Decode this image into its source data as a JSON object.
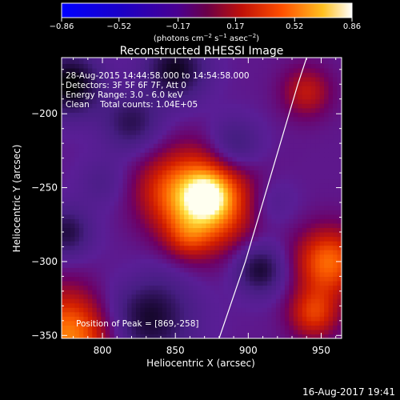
{
  "chart_data": {
    "type": "heatmap",
    "title": "Reconstructed RHESSI Image",
    "xlabel": "Heliocentric X (arcsec)",
    "ylabel": "Heliocentric Y (arcsec)",
    "xlim": [
      772,
      964
    ],
    "ylim": [
      -352,
      -162
    ],
    "x_ticks": [
      800,
      850,
      900,
      950
    ],
    "y_ticks": [
      -200,
      -250,
      -300,
      -350
    ],
    "colorbar": {
      "range": [
        -0.86,
        0.86
      ],
      "tick_values": [
        -0.86,
        -0.52,
        -0.17,
        0.17,
        0.52,
        0.86
      ],
      "tick_labels": [
        "−0.86",
        "−0.52",
        "−0.17",
        "0.17",
        "0.52",
        "0.86"
      ],
      "label_text": "(photons cm",
      "label_exp1": "−2",
      "label_mid": " s",
      "label_exp2": "−1",
      "label_mid2": " asec",
      "label_exp3": "−2",
      "label_close": ")"
    },
    "info_lines": [
      "28-Aug-2015 14:44:58.000 to 14:54:58.000",
      "Detectors: 3F 5F 6F 7F, Att 0",
      "Energy Range: 3.0 - 6.0 keV",
      "Clean    Total counts: 1.04E+05"
    ],
    "peak_text": "Position of Peak = [869,-258]",
    "peak": [
      869,
      -258
    ],
    "limb": [
      [
        880,
        -352
      ],
      [
        898,
        -300
      ],
      [
        916,
        -240
      ],
      [
        934,
        -180
      ],
      [
        940,
        -162
      ]
    ],
    "colors": {
      "background": "#000000",
      "limb": "#ffffff"
    }
  },
  "footer": {
    "timestamp": "16-Aug-2017 19:41"
  }
}
